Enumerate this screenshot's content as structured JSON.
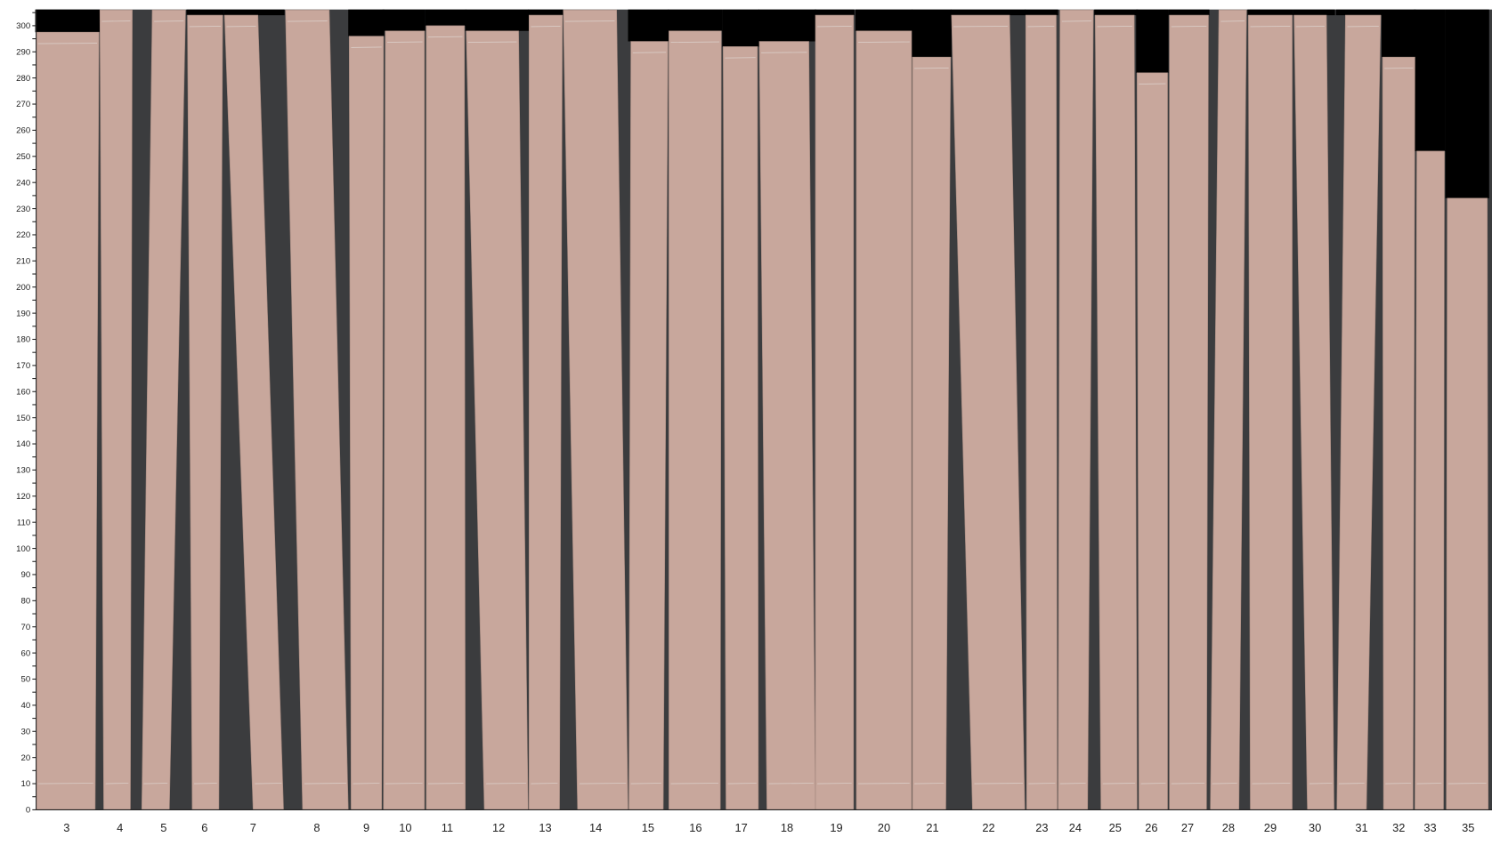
{
  "chart_data": {
    "type": "bar",
    "title": "",
    "xlabel": "",
    "ylabel": "",
    "ylim": [
      0,
      306
    ],
    "yticks": [
      "0",
      "10",
      "20",
      "30",
      "40",
      "50",
      "60",
      "70",
      "80",
      "90",
      "100",
      "110",
      "120",
      "130",
      "140",
      "150",
      "160",
      "170",
      "180",
      "190",
      "200",
      "210",
      "220",
      "230",
      "240",
      "250",
      "260",
      "270",
      "280",
      "290",
      "300"
    ],
    "categories": [
      "3",
      "4",
      "5",
      "6",
      "7",
      "8",
      "9",
      "10",
      "11",
      "12",
      "13",
      "14",
      "15",
      "16",
      "17",
      "18",
      "19",
      "20",
      "21",
      "22",
      "23",
      "24",
      "25",
      "26",
      "27",
      "28",
      "29",
      "30",
      "31",
      "32",
      "33",
      "35"
    ],
    "values": [
      297.5,
      306,
      306,
      304,
      304,
      306,
      296,
      298,
      300,
      298,
      304,
      306,
      294,
      298,
      292,
      294,
      304,
      298,
      288,
      304,
      304,
      306,
      304,
      282,
      304,
      306,
      304,
      304,
      304,
      288,
      252,
      234
    ],
    "grid": false,
    "legend": "none",
    "colors": {
      "board": "#c8a79c",
      "gap": "#3b3c3e",
      "empty": "#000000",
      "mark": "#e2dcd8"
    }
  }
}
